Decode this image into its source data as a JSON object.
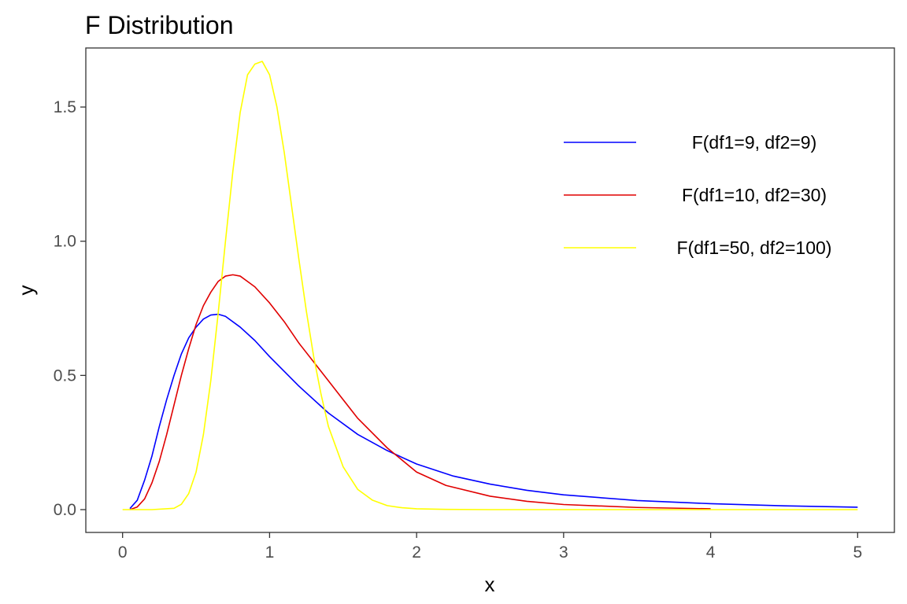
{
  "chart_data": {
    "type": "line",
    "title": "F Distribution",
    "xlabel": "x",
    "ylabel": "y",
    "xlim": [
      -0.25,
      5.25
    ],
    "ylim": [
      -0.085,
      1.72
    ],
    "x_ticks": [
      0,
      1,
      2,
      3,
      4,
      5
    ],
    "x_tick_labels": [
      "0",
      "1",
      "2",
      "3",
      "4",
      "5"
    ],
    "y_ticks": [
      0.0,
      0.5,
      1.0,
      1.5
    ],
    "y_tick_labels": [
      "0.0",
      "0.5",
      "1.0",
      "1.5"
    ],
    "grid": false,
    "legend_position": "top-right",
    "series": [
      {
        "name": "F(df1=9, df2=9)",
        "color": "#0000ff",
        "x": [
          0.05,
          0.1,
          0.15,
          0.2,
          0.25,
          0.3,
          0.35,
          0.4,
          0.45,
          0.5,
          0.55,
          0.6,
          0.65,
          0.7,
          0.8,
          0.9,
          1.0,
          1.2,
          1.4,
          1.6,
          1.8,
          2.0,
          2.25,
          2.5,
          2.75,
          3.0,
          3.5,
          4.0,
          4.5,
          5.0
        ],
        "y": [
          0.004,
          0.035,
          0.11,
          0.2,
          0.31,
          0.41,
          0.5,
          0.58,
          0.64,
          0.68,
          0.71,
          0.725,
          0.728,
          0.72,
          0.68,
          0.63,
          0.57,
          0.46,
          0.36,
          0.28,
          0.22,
          0.17,
          0.125,
          0.095,
          0.072,
          0.055,
          0.034,
          0.022,
          0.014,
          0.009
        ]
      },
      {
        "name": "F(df1=10, df2=30)",
        "color": "#e00000",
        "x": [
          0.05,
          0.1,
          0.15,
          0.2,
          0.25,
          0.3,
          0.35,
          0.4,
          0.45,
          0.5,
          0.55,
          0.6,
          0.65,
          0.7,
          0.75,
          0.8,
          0.85,
          0.9,
          1.0,
          1.1,
          1.2,
          1.3,
          1.4,
          1.5,
          1.6,
          1.8,
          2.0,
          2.2,
          2.5,
          2.75,
          3.0,
          3.5,
          4.0
        ],
        "y": [
          0.0,
          0.01,
          0.04,
          0.1,
          0.18,
          0.28,
          0.39,
          0.5,
          0.6,
          0.69,
          0.76,
          0.81,
          0.85,
          0.87,
          0.875,
          0.87,
          0.85,
          0.83,
          0.77,
          0.7,
          0.62,
          0.55,
          0.48,
          0.41,
          0.34,
          0.23,
          0.14,
          0.09,
          0.05,
          0.031,
          0.019,
          0.008,
          0.003
        ]
      },
      {
        "name": "F(df1=50, df2=100)",
        "color": "#ffff00",
        "x": [
          0.0,
          0.2,
          0.35,
          0.4,
          0.45,
          0.5,
          0.55,
          0.6,
          0.65,
          0.7,
          0.75,
          0.8,
          0.85,
          0.9,
          0.95,
          1.0,
          1.05,
          1.1,
          1.15,
          1.2,
          1.25,
          1.3,
          1.35,
          1.4,
          1.5,
          1.6,
          1.7,
          1.8,
          1.9,
          2.0,
          2.2,
          2.5,
          3.0,
          4.0,
          5.0
        ],
        "y": [
          0.0,
          0.0,
          0.005,
          0.02,
          0.06,
          0.14,
          0.28,
          0.48,
          0.73,
          1.0,
          1.26,
          1.48,
          1.62,
          1.66,
          1.67,
          1.62,
          1.5,
          1.33,
          1.13,
          0.93,
          0.74,
          0.57,
          0.43,
          0.31,
          0.16,
          0.075,
          0.035,
          0.015,
          0.007,
          0.003,
          0.001,
          0.0,
          0.0,
          0.0,
          0.0
        ]
      }
    ]
  }
}
